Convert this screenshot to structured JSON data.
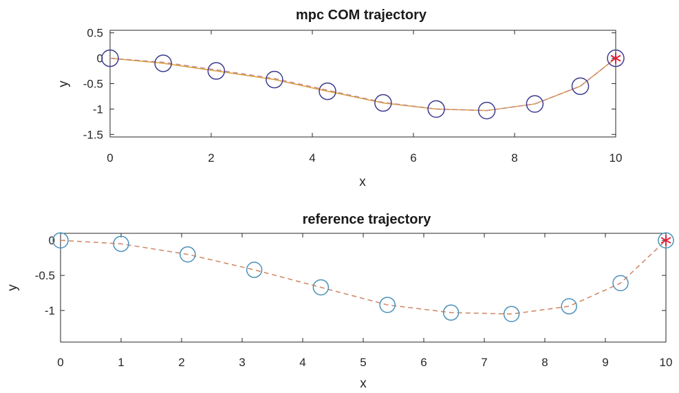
{
  "chart_data": [
    {
      "type": "line",
      "title": "mpc COM trajectory",
      "xlabel": "x",
      "ylabel": "y",
      "xlim": [
        0,
        10
      ],
      "ylim": [
        -1.55,
        0.55
      ],
      "xticks": [
        0,
        2,
        4,
        6,
        8,
        10
      ],
      "yticks": [
        0.5,
        0,
        -0.5,
        -1,
        -1.5
      ],
      "xtick_labels": [
        "0",
        "2",
        "4",
        "6",
        "8",
        "10"
      ],
      "ytick_labels": [
        "0.5",
        "0",
        "-0.5",
        "-1",
        "-1.5"
      ],
      "grid": false,
      "series": [
        {
          "style": "solid",
          "color": "#d9a441",
          "marker": "circle",
          "marker_color": "#3b3b8f",
          "x": [
            0,
            1.05,
            2.1,
            3.25,
            4.3,
            5.4,
            6.45,
            7.45,
            8.4,
            9.3,
            10.0
          ],
          "values": [
            0.0,
            -0.1,
            -0.25,
            -0.42,
            -0.65,
            -0.88,
            -1.0,
            -1.03,
            -0.9,
            -0.55,
            0.0
          ]
        },
        {
          "style": "dashed",
          "color": "#c78a8a",
          "marker": "none",
          "x": [
            0,
            1.05,
            2.1,
            3.25,
            4.3,
            5.4,
            6.45,
            7.45,
            8.4,
            9.3,
            10.0
          ],
          "values": [
            0.0,
            -0.08,
            -0.23,
            -0.4,
            -0.63,
            -0.87,
            -1.0,
            -1.03,
            -0.9,
            -0.55,
            0.0
          ]
        }
      ],
      "end_marker": {
        "x": 10.0,
        "y": 0.0,
        "symbol": "asterisk",
        "color": "#e0203a"
      }
    },
    {
      "type": "line",
      "title": "reference trajectory",
      "xlabel": "x",
      "ylabel": "y",
      "xlim": [
        0,
        10
      ],
      "ylim": [
        -1.45,
        0.1
      ],
      "xticks": [
        0,
        1,
        2,
        3,
        4,
        5,
        6,
        7,
        8,
        9,
        10
      ],
      "yticks": [
        0,
        -0.5,
        -1
      ],
      "xtick_labels": [
        "0",
        "1",
        "2",
        "3",
        "4",
        "5",
        "6",
        "7",
        "8",
        "9",
        "10"
      ],
      "ytick_labels": [
        "0",
        "-0.5",
        "-1"
      ],
      "grid": false,
      "series": [
        {
          "style": "dashed",
          "color": "#d08a6a",
          "marker": "circle",
          "marker_color": "#4a90b8",
          "x": [
            0,
            1.0,
            2.1,
            3.2,
            4.3,
            5.4,
            6.45,
            7.45,
            8.4,
            9.25,
            10.0
          ],
          "values": [
            0.0,
            -0.05,
            -0.2,
            -0.42,
            -0.67,
            -0.92,
            -1.03,
            -1.05,
            -0.94,
            -0.61,
            0.0
          ]
        }
      ],
      "end_marker": {
        "x": 10.0,
        "y": 0.0,
        "symbol": "asterisk",
        "color": "#e0203a"
      }
    }
  ]
}
